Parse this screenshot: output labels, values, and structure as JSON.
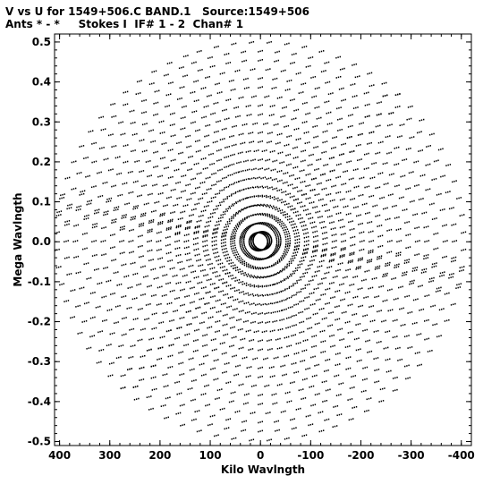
{
  "header": {
    "line1": "V vs U for 1549+506.C BAND.1   Source:1549+506",
    "line2": "Ants * - *     Stokes I  IF# 1 - 2  Chan# 1"
  },
  "chart_data": {
    "type": "scatter",
    "xlabel": "Kilo Wavlngth",
    "ylabel": "Mega Wavlngth",
    "xlim": [
      410,
      -420
    ],
    "ylim": [
      -0.51,
      0.52
    ],
    "x_inverted": true,
    "x_ticks": [
      400,
      300,
      200,
      100,
      0,
      -100,
      -200,
      -300,
      -400
    ],
    "x_tick_labels": [
      "400",
      "300",
      "200",
      "100",
      "0",
      "-100",
      "-200",
      "-300",
      "-400"
    ],
    "y_ticks": [
      0.5,
      0.4,
      0.3,
      0.2,
      0.1,
      0.0,
      -0.1,
      -0.2,
      -0.3,
      -0.4,
      -0.5
    ],
    "y_tick_labels": [
      "0.5",
      "0.4",
      "0.3",
      "0.2",
      "0.1",
      "0.0",
      "-0.1",
      "-0.2",
      "-0.3",
      "-0.4",
      "-0.5"
    ],
    "grid": false,
    "marker_color": "#000000",
    "coverage_model": {
      "arm_angles_deg": [
        36,
        100,
        160
      ],
      "max_radius_kilo": 405,
      "ellipse_y_scale_mega": 0.00123,
      "tracks": 22,
      "points_per_arc": 13,
      "arc_half_span_deg": 30
    }
  }
}
